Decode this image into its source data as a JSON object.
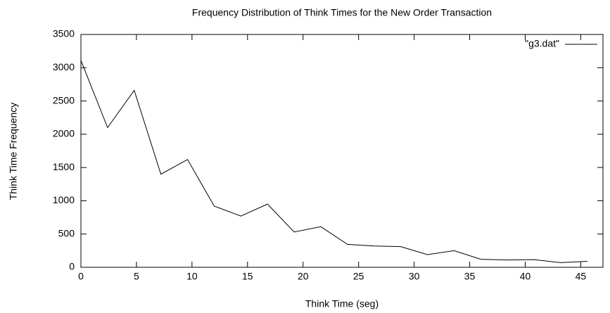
{
  "chart_data": {
    "type": "line",
    "title": "Frequency Distribution of Think Times for the New Order Transaction",
    "x_label": "Think Time (seg)",
    "y_label": "Think Time Frequency",
    "x": [
      0,
      2.4,
      4.8,
      7.2,
      9.6,
      12,
      14.4,
      16.8,
      19.2,
      21.6,
      24,
      26.4,
      28.8,
      31.2,
      33.6,
      36,
      38.4,
      40.8,
      43.2,
      45.6
    ],
    "series": [
      {
        "name": "\"g3.dat\"",
        "color": "#000000",
        "values": [
          3110,
          2100,
          2660,
          1400,
          1620,
          920,
          770,
          950,
          530,
          610,
          345,
          320,
          310,
          190,
          250,
          120,
          110,
          115,
          70,
          90
        ]
      }
    ],
    "xlim": [
      0,
      47
    ],
    "xticks": [
      0,
      5,
      10,
      15,
      20,
      25,
      30,
      35,
      40,
      45
    ],
    "ylim": [
      0,
      3500
    ],
    "yticks": [
      0,
      500,
      1000,
      1500,
      2000,
      2500,
      3000,
      3500
    ],
    "legend": "top-right"
  }
}
